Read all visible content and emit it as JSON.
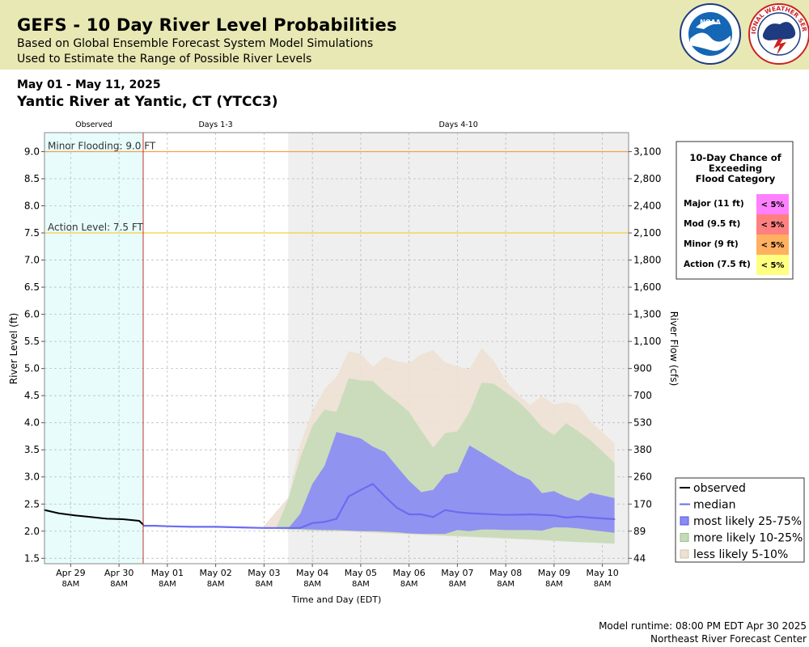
{
  "header": {
    "title": "GEFS - 10 Day River Level Probabilities",
    "subtitle1": "Based on Global Ensemble Forecast System Model Simulations",
    "subtitle2": "Used to Estimate the Range of Possible River Levels",
    "bg_color": "#e8e8b4"
  },
  "date_range": "May 01 - May 11, 2025",
  "location": "Yantic River at Yantic, CT (YTCC3)",
  "logos": {
    "noaa": "NOAA",
    "nws": "NATIONAL WEATHER SERVICE"
  },
  "footer": {
    "runtime": "Model runtime: 08:00 PM EDT Apr 30 2025",
    "center": "Northeast River Forecast Center"
  },
  "chart_data": {
    "type": "area",
    "xlabel": "Time and Day (EDT)",
    "ylabel": "River Level (ft)",
    "y2label": "River Flow (cfs)",
    "ylim": [
      1.4,
      9.35
    ],
    "xlim_hours": [
      -61,
      155
    ],
    "grid": true,
    "y_ticks": [
      "1.5",
      "2.0",
      "2.5",
      "3.0",
      "3.5",
      "4.0",
      "4.5",
      "5.0",
      "5.5",
      "6.0",
      "6.5",
      "7.0",
      "7.5",
      "8.0",
      "8.5",
      "9.0"
    ],
    "y_tick_values": [
      1.5,
      2.0,
      2.5,
      3.0,
      3.5,
      4.0,
      4.5,
      5.0,
      5.5,
      6.0,
      6.5,
      7.0,
      7.5,
      8.0,
      8.5,
      9.0
    ],
    "flow_ticks": [
      {
        "stage": 1.5,
        "label": "44"
      },
      {
        "stage": 2.0,
        "label": "89"
      },
      {
        "stage": 2.5,
        "label": "170"
      },
      {
        "stage": 3.0,
        "label": "260"
      },
      {
        "stage": 3.5,
        "label": "380"
      },
      {
        "stage": 4.0,
        "label": "530"
      },
      {
        "stage": 4.5,
        "label": "700"
      },
      {
        "stage": 5.0,
        "label": "900"
      },
      {
        "stage": 5.5,
        "label": "1,100"
      },
      {
        "stage": 6.0,
        "label": "1,300"
      },
      {
        "stage": 6.5,
        "label": "1,600"
      },
      {
        "stage": 7.0,
        "label": "1,800"
      },
      {
        "stage": 7.5,
        "label": "2,100"
      },
      {
        "stage": 8.0,
        "label": "2,400"
      },
      {
        "stage": 8.5,
        "label": "2,800"
      },
      {
        "stage": 9.0,
        "label": "3,100"
      }
    ],
    "x_ticks": [
      {
        "h": -48,
        "day": "Apr 29",
        "time": "8AM"
      },
      {
        "h": -24,
        "day": "Apr 30",
        "time": "8AM"
      },
      {
        "h": 0,
        "day": "May 01",
        "time": "8AM"
      },
      {
        "h": 24,
        "day": "May 02",
        "time": "8AM"
      },
      {
        "h": 48,
        "day": "May 03",
        "time": "8AM"
      },
      {
        "h": 72,
        "day": "May 04",
        "time": "8AM"
      },
      {
        "h": 96,
        "day": "May 05",
        "time": "8AM"
      },
      {
        "h": 120,
        "day": "May 06",
        "time": "8AM"
      },
      {
        "h": 144,
        "day": "May 07",
        "time": "8AM"
      },
      {
        "h": 168,
        "day": "May 08",
        "time": "8AM"
      },
      {
        "h": 192,
        "day": "May 09",
        "time": "8AM"
      },
      {
        "h": 216,
        "day": "May 10",
        "time": "8AM"
      }
    ],
    "periods": [
      {
        "label": "Observed",
        "start": -61,
        "end": -12,
        "color": "#e8fcfc"
      },
      {
        "label": "Days 1-3",
        "start": -12,
        "end": 60,
        "color": "#ffffff"
      },
      {
        "label": "Days 4-10",
        "start": 60,
        "end": 229,
        "color": "#efefef"
      }
    ],
    "now_h": -12,
    "thresholds": [
      {
        "label": "Minor Flooding: 9.0 FT",
        "value": 9.0,
        "color": "#f0a050"
      },
      {
        "label": "Action Level: 7.5 FT",
        "value": 7.5,
        "color": "#f0d040"
      }
    ],
    "x_range": [
      -61,
      229
    ],
    "series": [
      {
        "name": "observed",
        "color": "#000000",
        "x": [
          -61,
          -54,
          -46,
          -38,
          -30,
          -22,
          -14,
          -12
        ],
        "y": [
          2.39,
          2.33,
          2.29,
          2.26,
          2.23,
          2.22,
          2.19,
          2.12
        ]
      },
      {
        "name": "median",
        "color": "#6b6bf0",
        "x": [
          -12,
          -6,
          0,
          12,
          24,
          36,
          48,
          60,
          66,
          72,
          78,
          84,
          90,
          96,
          102,
          108,
          114,
          120,
          126,
          132,
          138,
          144,
          150,
          156,
          168,
          180,
          192,
          198,
          204,
          210,
          222
        ],
        "y": [
          2.1,
          2.1,
          2.09,
          2.08,
          2.08,
          2.07,
          2.06,
          2.06,
          2.06,
          2.15,
          2.17,
          2.23,
          2.64,
          2.76,
          2.87,
          2.64,
          2.43,
          2.31,
          2.31,
          2.26,
          2.39,
          2.35,
          2.33,
          2.32,
          2.3,
          2.31,
          2.29,
          2.25,
          2.27,
          2.25,
          2.22
        ]
      }
    ],
    "bands": [
      {
        "name": "less likely 5-10%",
        "color": "#ede1d3",
        "x": [
          48,
          60,
          66,
          72,
          78,
          84,
          90,
          96,
          102,
          108,
          114,
          120,
          126,
          132,
          138,
          144,
          150,
          156,
          162,
          168,
          174,
          180,
          186,
          192,
          198,
          204,
          210,
          222
        ],
        "low": [
          2.05,
          2.04,
          2.03,
          2.02,
          2.01,
          2.0,
          1.99,
          1.98,
          1.97,
          1.96,
          1.95,
          1.94,
          1.93,
          1.92,
          1.91,
          1.9,
          1.89,
          1.88,
          1.87,
          1.86,
          1.85,
          1.84,
          1.83,
          1.82,
          1.81,
          1.8,
          1.79,
          1.78
        ],
        "high": [
          2.1,
          2.62,
          3.6,
          4.22,
          4.62,
          4.85,
          5.32,
          5.27,
          5.03,
          5.22,
          5.13,
          5.1,
          5.26,
          5.34,
          5.11,
          5.04,
          4.98,
          5.38,
          5.15,
          4.77,
          4.52,
          4.33,
          4.49,
          4.34,
          4.38,
          4.32,
          4.03,
          3.62
        ]
      },
      {
        "name": "more likely 10-25%",
        "color": "#c5dab9",
        "x": [
          54,
          60,
          66,
          72,
          78,
          84,
          90,
          96,
          102,
          108,
          114,
          120,
          126,
          132,
          138,
          144,
          150,
          156,
          162,
          168,
          174,
          180,
          186,
          192,
          198,
          204,
          210,
          222
        ],
        "low": [
          2.04,
          2.03,
          2.02,
          2.01,
          2.01,
          2.0,
          2.0,
          1.99,
          1.98,
          1.97,
          1.96,
          1.95,
          1.94,
          1.93,
          1.92,
          1.91,
          1.9,
          1.89,
          1.88,
          1.87,
          1.86,
          1.85,
          1.84,
          1.82,
          1.81,
          1.8,
          1.79,
          1.77
        ],
        "high": [
          2.05,
          2.58,
          3.35,
          3.94,
          4.24,
          4.2,
          4.82,
          4.78,
          4.77,
          4.56,
          4.39,
          4.2,
          3.86,
          3.54,
          3.81,
          3.84,
          4.19,
          4.74,
          4.72,
          4.56,
          4.4,
          4.18,
          3.92,
          3.77,
          3.99,
          3.84,
          3.68,
          3.26
        ]
      },
      {
        "name": "most likely 25-75%",
        "color": "#8b8bf5",
        "x": [
          60,
          66,
          72,
          78,
          84,
          90,
          96,
          102,
          108,
          114,
          120,
          126,
          132,
          138,
          144,
          150,
          156,
          162,
          168,
          174,
          180,
          186,
          192,
          198,
          204,
          210,
          222
        ],
        "low": [
          2.04,
          2.04,
          2.03,
          2.02,
          2.02,
          2.01,
          2.0,
          2.0,
          1.99,
          1.98,
          1.96,
          1.95,
          1.95,
          1.95,
          2.02,
          2.0,
          2.03,
          2.03,
          2.02,
          2.02,
          2.02,
          2.01,
          2.07,
          2.07,
          2.05,
          2.02,
          1.97
        ],
        "high": [
          2.05,
          2.32,
          2.87,
          3.2,
          3.83,
          3.77,
          3.71,
          3.56,
          3.46,
          3.19,
          2.93,
          2.72,
          2.76,
          3.04,
          3.09,
          3.58,
          3.45,
          3.31,
          3.18,
          3.04,
          2.95,
          2.7,
          2.74,
          2.63,
          2.56,
          2.71,
          2.61
        ]
      }
    ],
    "legend": {
      "placement": "bottom-right",
      "entries": [
        {
          "label": "observed",
          "kind": "line",
          "color": "#000000"
        },
        {
          "label": "median",
          "kind": "line",
          "color": "#6b6bf0"
        },
        {
          "label": "most likely 25-75%",
          "kind": "box",
          "color": "#8b8bf5",
          "border": "#5656e0"
        },
        {
          "label": "more likely 10-25%",
          "kind": "box",
          "color": "#c5dab9",
          "border": "#9cc38c"
        },
        {
          "label": "less likely 5-10%",
          "kind": "box",
          "color": "#ede1d3",
          "border": "#d6c4ae"
        }
      ]
    },
    "exceed_table": {
      "title": [
        "10-Day Chance of",
        "Exceeding",
        "Flood Category"
      ],
      "rows": [
        {
          "label": "Major (11 ft)",
          "value": "< 5%",
          "color": "#ff80ff"
        },
        {
          "label": "Mod (9.5 ft)",
          "value": "< 5%",
          "color": "#ff8080"
        },
        {
          "label": "Minor (9 ft)",
          "value": "< 5%",
          "color": "#ffb060"
        },
        {
          "label": "Action (7.5 ft)",
          "value": "< 5%",
          "color": "#ffff80"
        }
      ]
    }
  }
}
